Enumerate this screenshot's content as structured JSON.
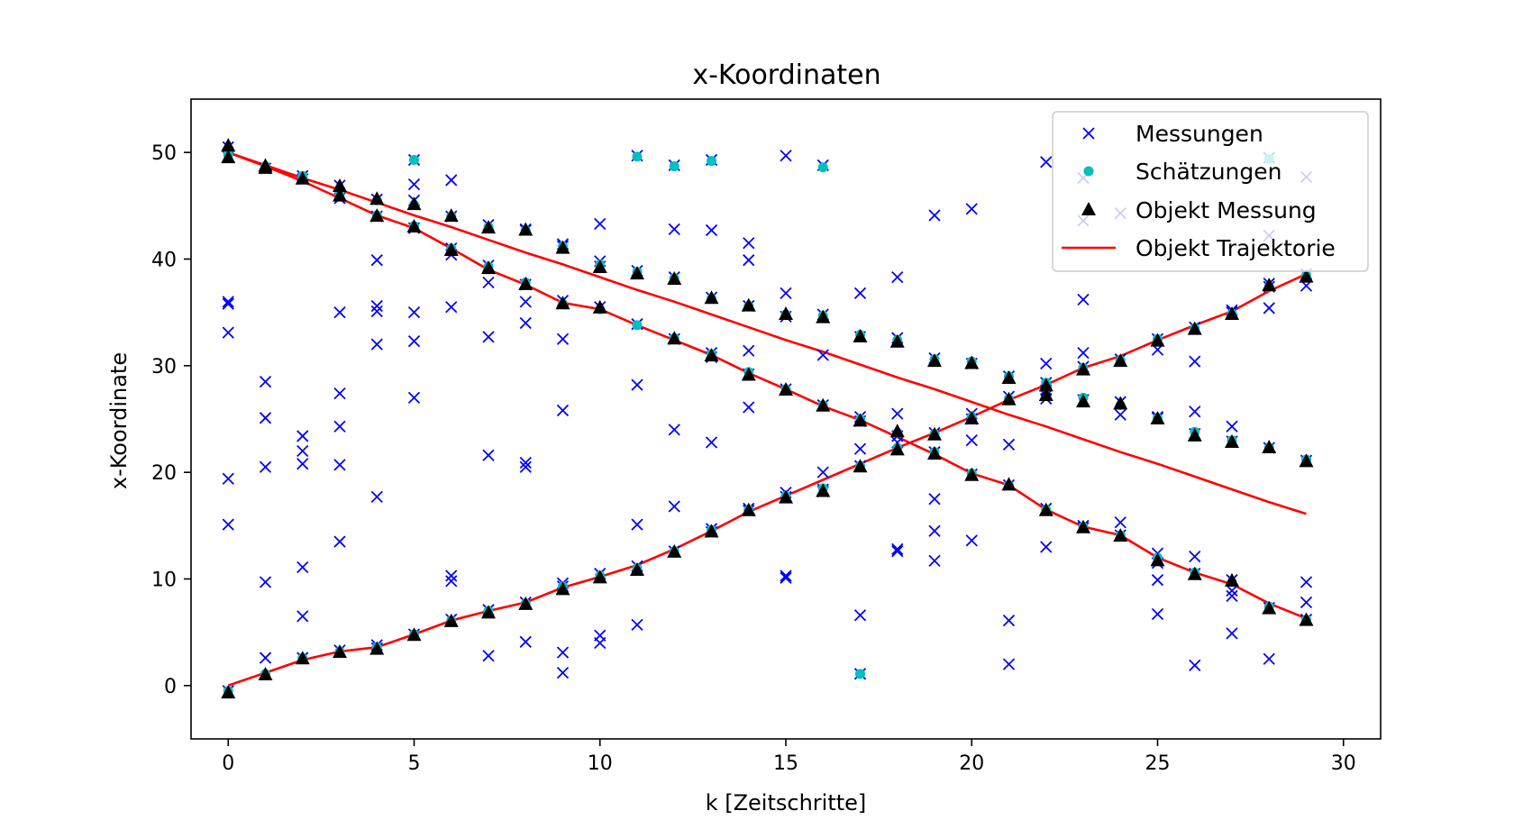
{
  "chart_data": {
    "type": "scatter",
    "title": "x-Koordinaten",
    "xlabel": "k [Zeitschritte]",
    "ylabel": "x-Koordinate",
    "xlim": [
      -1,
      31
    ],
    "ylim": [
      -5,
      55
    ],
    "xticks": [
      0,
      5,
      10,
      15,
      20,
      25,
      30
    ],
    "yticks": [
      0,
      10,
      20,
      30,
      40,
      50
    ],
    "grid": false,
    "legend_position": "upper-right",
    "legend": [
      {
        "label": "Messungen",
        "marker": "x",
        "color": "#0000ff"
      },
      {
        "label": "Schätzungen",
        "marker": "dot",
        "color": "#00bfbf"
      },
      {
        "label": "Objekt Messung",
        "marker": "triangle",
        "color": "#000000"
      },
      {
        "label": "Objekt Trajektorie",
        "marker": "line",
        "color": "#ff0000"
      }
    ],
    "trajectories": [
      {
        "x": [
          0,
          1,
          2,
          3,
          4,
          5,
          6,
          7,
          8,
          9,
          10,
          11,
          12,
          13,
          14,
          15,
          16,
          17,
          18,
          19,
          20,
          21,
          22,
          23,
          24,
          25,
          26,
          27,
          28,
          29
        ],
        "y": [
          50.0,
          48.8,
          47.6,
          46.5,
          45.3,
          44.1,
          43.0,
          41.8,
          40.6,
          39.5,
          38.3,
          37.1,
          36.0,
          34.8,
          33.6,
          32.4,
          31.3,
          30.1,
          28.9,
          27.8,
          26.6,
          25.4,
          24.3,
          23.1,
          21.9,
          20.8,
          19.6,
          18.4,
          17.2,
          16.1
        ]
      },
      {
        "x": [
          0,
          1,
          2,
          3,
          4,
          5,
          6,
          7,
          8,
          9,
          10,
          11,
          12,
          13,
          14,
          15,
          16,
          17,
          18,
          19,
          20,
          21,
          22,
          23,
          24,
          25,
          26,
          27,
          28,
          29
        ],
        "y": [
          50.0,
          48.7,
          47.3,
          45.7,
          44.1,
          42.9,
          41.0,
          39.0,
          37.6,
          35.9,
          35.3,
          33.8,
          32.4,
          31.0,
          29.3,
          27.8,
          26.2,
          24.9,
          23.3,
          21.7,
          19.9,
          18.8,
          16.5,
          14.9,
          14.1,
          12.0,
          10.6,
          9.5,
          7.7,
          6.3
        ]
      },
      {
        "x": [
          0,
          1,
          2,
          3,
          4,
          5,
          6,
          7,
          8,
          9,
          10,
          11,
          12,
          13,
          14,
          15,
          16,
          17,
          18,
          19,
          20,
          21,
          22,
          23,
          24,
          25,
          26,
          27,
          28,
          29
        ],
        "y": [
          0.0,
          1.2,
          2.4,
          3.2,
          3.6,
          4.8,
          6.1,
          7.0,
          7.8,
          9.2,
          10.2,
          11.3,
          12.8,
          14.5,
          16.3,
          17.8,
          19.3,
          20.8,
          22.3,
          23.7,
          25.2,
          26.8,
          28.2,
          29.8,
          30.9,
          32.4,
          33.8,
          35.1,
          37.0,
          38.6
        ]
      }
    ],
    "estimates": {
      "x": [
        0,
        1,
        2,
        3,
        4,
        5,
        6,
        7,
        8,
        9,
        10,
        11,
        12,
        13,
        14,
        15,
        16,
        17,
        18,
        19,
        20,
        21,
        22,
        23,
        24,
        25,
        26,
        27,
        28,
        29,
        0,
        1,
        2,
        3,
        4,
        5,
        6,
        7,
        8,
        9,
        10,
        11,
        12,
        13,
        14,
        15,
        16,
        17,
        18,
        19,
        20,
        21,
        22,
        23,
        24,
        25,
        26,
        27,
        28,
        29,
        0,
        1,
        2,
        3,
        4,
        5,
        6,
        7,
        8,
        9,
        10,
        11,
        12,
        13,
        14,
        15,
        16,
        17,
        18,
        19,
        20,
        21,
        22,
        23,
        24,
        25,
        26,
        27,
        28,
        29,
        5,
        11,
        12,
        13,
        16,
        17,
        28
      ],
      "y": [
        50.2,
        48.6,
        47.8,
        46.6,
        45.5,
        45.1,
        44.0,
        43.0,
        42.7,
        41.2,
        39.5,
        38.8,
        38.2,
        36.3,
        35.6,
        34.8,
        34.7,
        32.9,
        32.4,
        30.6,
        30.4,
        29.0,
        28.4,
        27.0,
        26.3,
        25.1,
        23.8,
        23.0,
        22.3,
        21.2,
        49.8,
        48.7,
        47.6,
        46.1,
        44.1,
        43.1,
        41.0,
        39.3,
        37.8,
        35.8,
        35.3,
        33.8,
        32.6,
        31.1,
        29.4,
        27.8,
        26.3,
        25.0,
        23.7,
        21.9,
        19.9,
        18.8,
        16.5,
        14.9,
        14.1,
        12.0,
        10.6,
        9.7,
        7.4,
        6.2,
        -0.5,
        1.1,
        2.6,
        3.2,
        3.6,
        4.8,
        6.1,
        7.0,
        7.7,
        9.3,
        10.3,
        11.0,
        12.6,
        14.6,
        16.5,
        17.8,
        18.5,
        20.6,
        22.3,
        23.6,
        25.2,
        26.9,
        27.9,
        29.8,
        30.5,
        32.5,
        33.5,
        34.9,
        37.4,
        38.5,
        49.3,
        49.6,
        48.7,
        49.2,
        48.6,
        1.1,
        49.4
      ]
    },
    "object_measurements": {
      "x": [
        0,
        0,
        1,
        1,
        2,
        3,
        3,
        4,
        4,
        5,
        5,
        6,
        6,
        7,
        7,
        8,
        8,
        9,
        9,
        10,
        10,
        11,
        12,
        12,
        13,
        13,
        14,
        14,
        15,
        15,
        16,
        16,
        17,
        17,
        18,
        18,
        19,
        19,
        20,
        20,
        21,
        21,
        22,
        22,
        23,
        23,
        24,
        24,
        25,
        25,
        26,
        26,
        27,
        27,
        28,
        28,
        29,
        29,
        0,
        1,
        2,
        3,
        4,
        5,
        6,
        7,
        8,
        9,
        10,
        11,
        12,
        13,
        14,
        15,
        16,
        17,
        18,
        19,
        20,
        21,
        22,
        23,
        24,
        25,
        26,
        27,
        28,
        29
      ],
      "y": [
        50.6,
        49.5,
        48.7,
        48.5,
        47.5,
        46.8,
        45.9,
        45.6,
        44.0,
        45.1,
        43.0,
        44.0,
        40.8,
        42.9,
        39.1,
        42.7,
        37.6,
        41.0,
        35.8,
        39.2,
        35.4,
        38.6,
        38.1,
        32.5,
        36.3,
        30.9,
        35.6,
        29.1,
        34.8,
        27.7,
        34.5,
        26.2,
        32.7,
        24.8,
        32.2,
        23.8,
        30.4,
        21.7,
        30.2,
        19.7,
        28.8,
        18.8,
        28.1,
        16.4,
        26.6,
        14.8,
        26.4,
        14.0,
        25.0,
        11.7,
        23.4,
        10.4,
        22.8,
        9.8,
        22.3,
        7.2,
        21.0,
        6.1,
        -0.7,
        1.0,
        2.5,
        3.1,
        3.4,
        4.7,
        6.0,
        6.8,
        7.6,
        9.0,
        10.1,
        10.8,
        12.5,
        14.4,
        16.4,
        17.6,
        18.2,
        20.5,
        22.1,
        23.5,
        25.0,
        26.8,
        27.2,
        29.6,
        30.4,
        32.3,
        33.4,
        34.8,
        37.5,
        38.3
      ]
    },
    "measurements": {
      "x": [
        0,
        0,
        0,
        0,
        0,
        0,
        0,
        1,
        1,
        1,
        1,
        1,
        1,
        2,
        2,
        2,
        2,
        2,
        2,
        2,
        2,
        3,
        3,
        3,
        3,
        3,
        3,
        3,
        3,
        4,
        4,
        4,
        4,
        4,
        4,
        4,
        4,
        4,
        5,
        5,
        5,
        5,
        5,
        5,
        5,
        5,
        6,
        6,
        6,
        6,
        6,
        6,
        6,
        6,
        7,
        7,
        7,
        7,
        7,
        7,
        7,
        8,
        8,
        8,
        8,
        8,
        8,
        8,
        8,
        8,
        9,
        9,
        9,
        9,
        9,
        9,
        9,
        9,
        9,
        10,
        10,
        10,
        10,
        10,
        10,
        10,
        11,
        11,
        11,
        11,
        11,
        11,
        11,
        12,
        12,
        12,
        12,
        12,
        12,
        12,
        13,
        13,
        13,
        13,
        13,
        13,
        13,
        13,
        14,
        14,
        14,
        14,
        14,
        14,
        14,
        14,
        15,
        15,
        15,
        15,
        15,
        15,
        15,
        15,
        16,
        16,
        16,
        16,
        16,
        16,
        16,
        17,
        17,
        17,
        17,
        17,
        17,
        17,
        17,
        18,
        18,
        18,
        18,
        18,
        18,
        18,
        19,
        19,
        19,
        19,
        19,
        19,
        19,
        20,
        20,
        20,
        20,
        20,
        20,
        20,
        21,
        21,
        21,
        21,
        21,
        21,
        22,
        22,
        22,
        22,
        22,
        22,
        22,
        22,
        23,
        23,
        23,
        23,
        23,
        23,
        23,
        23,
        24,
        24,
        24,
        24,
        24,
        24,
        25,
        25,
        25,
        25,
        25,
        25,
        25,
        25,
        26,
        26,
        26,
        26,
        26,
        26,
        26,
        27,
        27,
        27,
        27,
        27,
        27,
        27,
        27,
        28,
        28,
        28,
        28,
        28,
        28,
        28,
        28,
        29,
        29,
        29,
        29,
        29,
        29,
        29
      ],
      "y": [
        50.5,
        36.0,
        35.8,
        33.1,
        19.4,
        15.1,
        -0.5,
        48.5,
        28.5,
        25.1,
        20.5,
        9.7,
        2.6,
        47.8,
        23.4,
        22.0,
        20.8,
        11.1,
        6.5,
        2.6,
        47.5,
        46.9,
        35.0,
        27.4,
        24.3,
        20.7,
        13.5,
        3.3,
        45.7,
        45.6,
        39.9,
        35.6,
        35.1,
        32.0,
        17.7,
        44.0,
        3.8,
        3.5,
        49.3,
        47.0,
        45.5,
        35.0,
        32.3,
        27.0,
        42.9,
        4.8,
        47.4,
        44.0,
        40.4,
        35.5,
        10.3,
        9.8,
        6.2,
        41.0,
        43.2,
        37.8,
        32.7,
        21.6,
        2.8,
        39.4,
        7.1,
        42.8,
        42.7,
        37.6,
        36.0,
        34.0,
        20.9,
        20.5,
        4.1,
        7.8,
        41.4,
        36.1,
        32.5,
        25.8,
        9.6,
        3.1,
        1.2,
        41.2,
        9.3,
        43.3,
        39.3,
        35.5,
        4.7,
        4.0,
        39.8,
        10.5,
        49.7,
        38.9,
        33.9,
        28.2,
        15.1,
        5.7,
        11.2,
        48.8,
        42.8,
        38.3,
        32.5,
        24.0,
        16.8,
        12.6,
        49.3,
        42.7,
        36.4,
        31.2,
        22.8,
        14.4,
        30.8,
        14.7,
        41.5,
        39.9,
        35.6,
        31.4,
        29.2,
        26.1,
        16.4,
        16.6,
        49.7,
        36.8,
        34.6,
        27.8,
        18.1,
        10.3,
        10.1,
        17.7,
        48.8,
        34.8,
        31.0,
        26.3,
        20.0,
        18.4,
        18.2,
        36.8,
        32.7,
        25.2,
        24.8,
        22.2,
        20.6,
        6.6,
        1.1,
        38.3,
        32.6,
        25.5,
        23.4,
        22.8,
        12.8,
        12.6,
        44.1,
        30.7,
        23.7,
        21.9,
        17.5,
        14.5,
        11.7,
        44.7,
        30.2,
        25.5,
        23.0,
        19.8,
        13.6,
        25.0,
        29.0,
        27.1,
        22.6,
        18.8,
        6.1,
        2.0,
        49.1,
        30.2,
        28.4,
        27.2,
        26.9,
        16.6,
        13.0,
        27.7,
        47.6,
        43.6,
        36.2,
        31.2,
        29.9,
        26.8,
        15.0,
        14.8,
        44.3,
        30.6,
        26.6,
        25.4,
        15.3,
        14.1,
        32.5,
        31.5,
        25.2,
        12.4,
        11.5,
        9.9,
        6.7,
        25.1,
        33.6,
        30.4,
        25.7,
        23.6,
        12.1,
        10.5,
        1.9,
        35.0,
        24.3,
        22.9,
        9.9,
        8.9,
        8.4,
        4.9,
        35.2,
        49.5,
        42.2,
        37.7,
        35.4,
        22.3,
        7.3,
        2.5,
        37.4,
        47.7,
        38.6,
        37.5,
        21.1,
        9.7,
        7.8,
        6.2
      ]
    }
  }
}
